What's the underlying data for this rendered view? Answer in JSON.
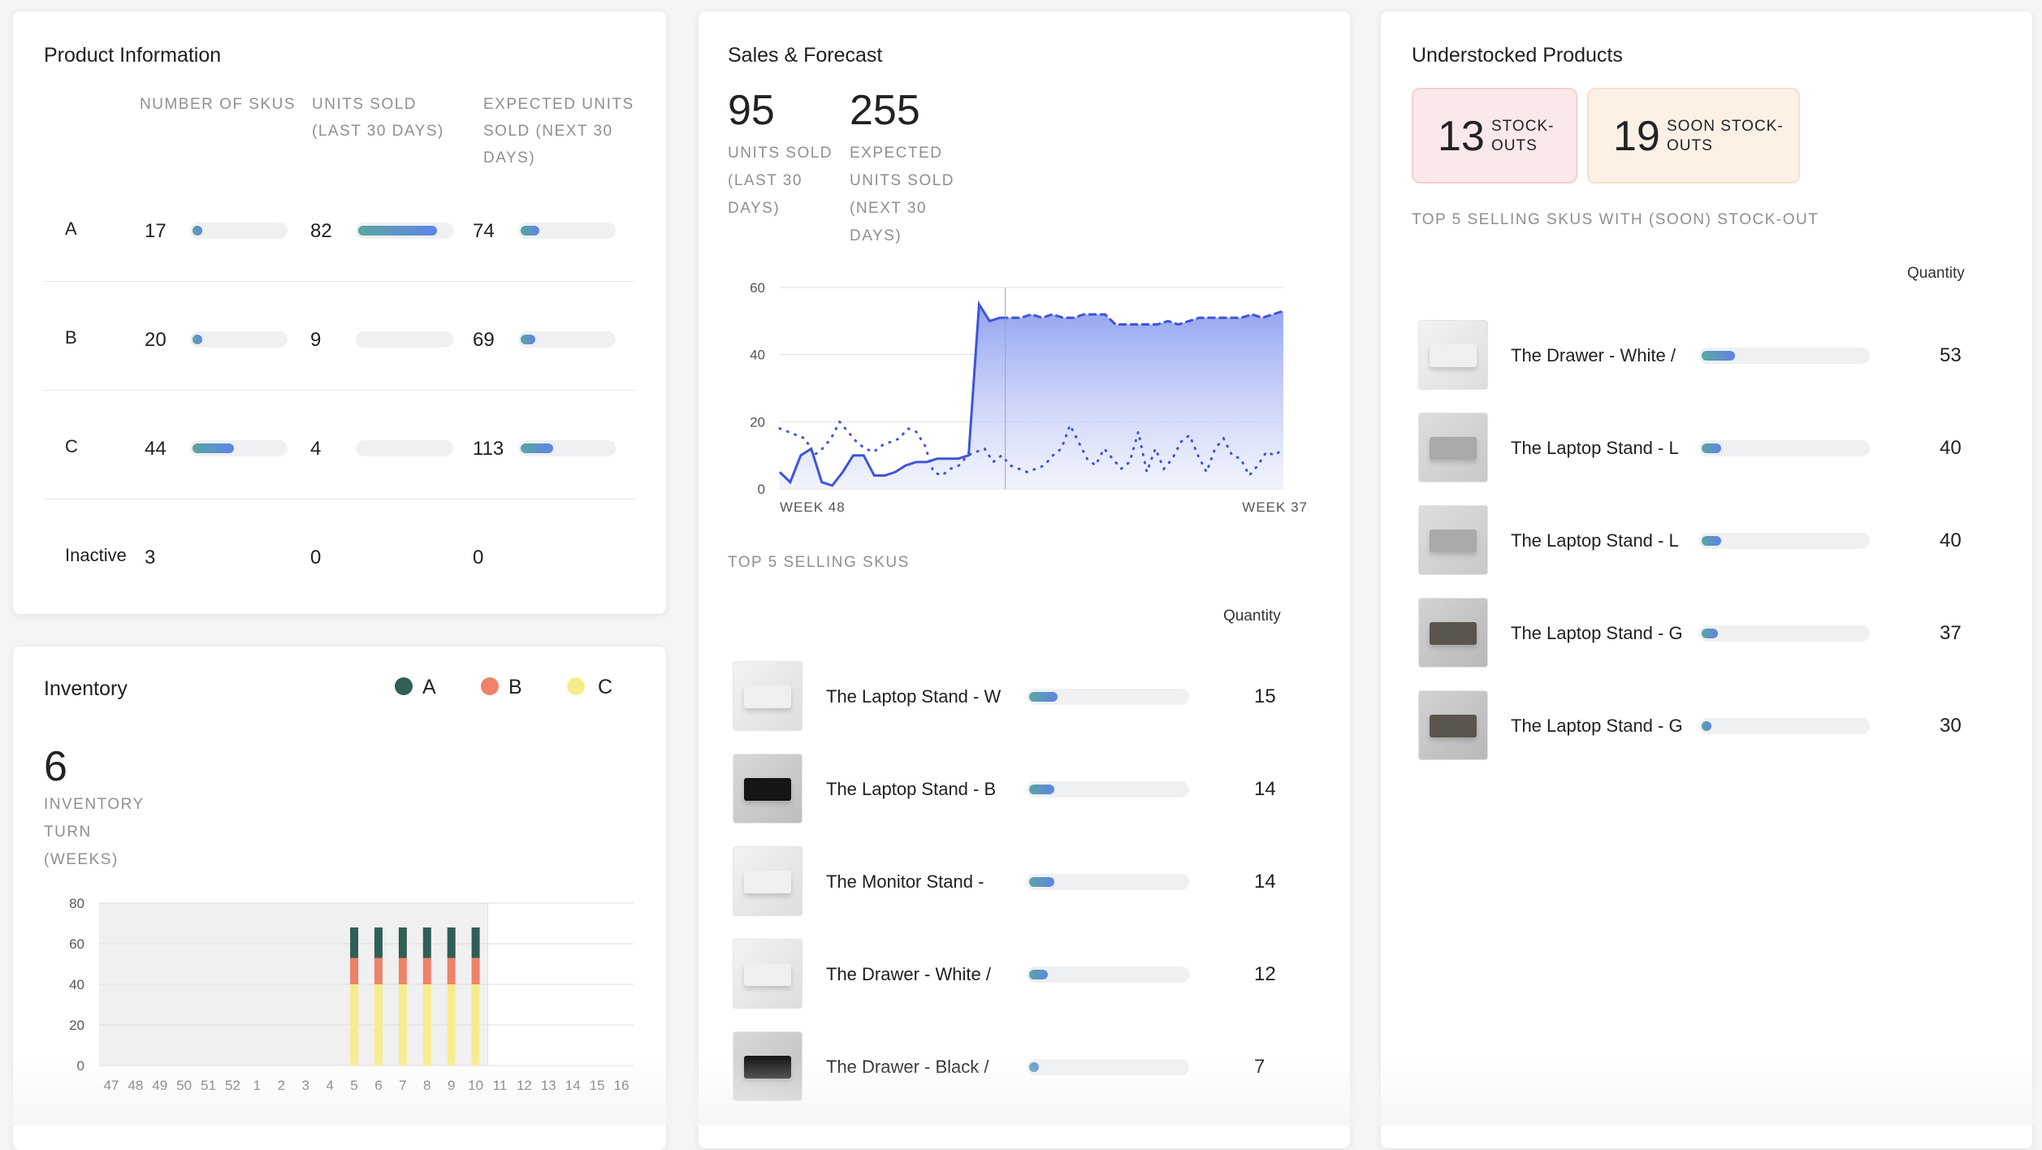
{
  "product_info": {
    "title": "Product Information",
    "headers": [
      "NUMBER OF SKUS",
      "UNITS SOLD (LAST 30 DAYS)",
      "EXPECTED UNITS SOLD (NEXT 30 DAYS)"
    ],
    "rows": [
      {
        "label": "A",
        "skus": "17",
        "skus_pct": 5,
        "sold": "82",
        "sold_pct": 85,
        "expected": "74",
        "expected_pct": 20
      },
      {
        "label": "B",
        "skus": "20",
        "skus_pct": 5,
        "sold": "9",
        "sold_pct": 0,
        "expected": "69",
        "expected_pct": 16
      },
      {
        "label": "C",
        "skus": "44",
        "skus_pct": 45,
        "sold": "4",
        "sold_pct": 0,
        "expected": "113",
        "expected_pct": 35
      },
      {
        "label": "Inactive",
        "skus": "3",
        "sold": "0",
        "expected": "0"
      }
    ]
  },
  "inventory": {
    "title": "Inventory",
    "legend": [
      {
        "label": "A",
        "color": "#2f5f55"
      },
      {
        "label": "B",
        "color": "#ee8268"
      },
      {
        "label": "C",
        "color": "#f7ec8c"
      }
    ],
    "turn_value": "6",
    "turn_label": "INVENTORY TURN (WEEKS)",
    "chart": {
      "type": "bar",
      "stacked": true,
      "ylim": [
        0,
        80
      ],
      "yticks": [
        "0",
        "20",
        "40",
        "60",
        "80"
      ],
      "categories": [
        "47",
        "48",
        "49",
        "50",
        "51",
        "52",
        "1",
        "2",
        "3",
        "4",
        "5",
        "6",
        "7",
        "8",
        "9",
        "10",
        "11",
        "12",
        "13",
        "14",
        "15",
        "16"
      ],
      "series": [
        {
          "name": "C",
          "values": [
            0,
            0,
            0,
            0,
            0,
            0,
            0,
            0,
            0,
            0,
            40,
            40,
            40,
            40,
            40,
            40,
            0,
            0,
            0,
            0,
            0,
            0
          ]
        },
        {
          "name": "B",
          "values": [
            0,
            0,
            0,
            0,
            0,
            0,
            0,
            0,
            0,
            0,
            13,
            13,
            13,
            13,
            13,
            13,
            0,
            0,
            0,
            0,
            0,
            0
          ]
        },
        {
          "name": "A",
          "values": [
            0,
            0,
            0,
            0,
            0,
            0,
            0,
            0,
            0,
            0,
            15,
            15,
            15,
            15,
            15,
            15,
            0,
            0,
            0,
            0,
            0,
            0
          ]
        }
      ],
      "shaded_range": [
        "47",
        "11"
      ]
    }
  },
  "sales": {
    "title": "Sales & Forecast",
    "kpi1_value": "95",
    "kpi1_label": "UNITS SOLD (LAST 30 DAYS)",
    "kpi2_value": "255",
    "kpi2_label": "EXPECTED UNITS SOLD (NEXT 30 DAYS)",
    "chart": {
      "type": "line",
      "ylim": [
        0,
        60
      ],
      "yticks": [
        "0",
        "20",
        "40",
        "60"
      ],
      "x_start_label": "WEEK 48",
      "x_end_label": "WEEK 37",
      "series": [
        {
          "values": [
            5,
            2,
            10,
            12,
            2,
            1,
            5,
            10,
            10,
            4,
            4,
            5,
            7,
            8,
            8,
            9,
            9,
            9,
            10,
            55,
            50,
            51,
            51,
            51,
            52,
            51,
            52,
            51,
            51,
            52,
            52,
            52,
            49,
            49,
            49,
            49,
            49,
            50,
            49,
            50,
            51,
            51,
            51,
            51,
            51,
            52,
            51,
            52,
            53
          ]
        },
        {
          "values": [
            18,
            17,
            16,
            15,
            10,
            12,
            15,
            20,
            17,
            14,
            12,
            11,
            13,
            14,
            15,
            18,
            17,
            13,
            5,
            4,
            6,
            7,
            10,
            11,
            12,
            8,
            10,
            7,
            6,
            5,
            6,
            7,
            10,
            12,
            19,
            14,
            9,
            7,
            12,
            9,
            6,
            8,
            17,
            5,
            12,
            6,
            9,
            14,
            16,
            10,
            5,
            12,
            15,
            10,
            9,
            4,
            7,
            11,
            10,
            12
          ]
        }
      ],
      "cutoff_index": 21
    },
    "top_label": "TOP 5 SELLING SKUS",
    "qty_header": "Quantity",
    "items": [
      {
        "name": "The Laptop Stand - W",
        "qty": "15",
        "pct": 18,
        "thumb": "white"
      },
      {
        "name": "The Laptop Stand - B",
        "qty": "14",
        "pct": 16,
        "thumb": "black"
      },
      {
        "name": "The Monitor Stand -",
        "qty": "14",
        "pct": 16,
        "thumb": "white"
      },
      {
        "name": "The Drawer - White /",
        "qty": "12",
        "pct": 12,
        "thumb": "white"
      },
      {
        "name": "The Drawer - Black /",
        "qty": "7",
        "pct": 4,
        "thumb": "black"
      }
    ]
  },
  "understocked": {
    "title": "Understocked Products",
    "stockouts_value": "13",
    "stockouts_label": "STOCK-OUTS",
    "soon_value": "19",
    "soon_label": "SOON STOCK-OUTS",
    "top_label": "TOP 5 SELLING SKUS WITH (SOON) STOCK-OUT",
    "qty_header": "Quantity",
    "items": [
      {
        "name": "The Drawer - White /",
        "qty": "53",
        "pct": 20,
        "thumb": "white"
      },
      {
        "name": "The Laptop Stand - L",
        "qty": "40",
        "pct": 12,
        "thumb": "grey"
      },
      {
        "name": "The Laptop Stand - L",
        "qty": "40",
        "pct": 12,
        "thumb": "grey"
      },
      {
        "name": "The Laptop Stand - G",
        "qty": "37",
        "pct": 10,
        "thumb": "dark"
      },
      {
        "name": "The Laptop Stand - G",
        "qty": "30",
        "pct": 6,
        "thumb": "dark"
      }
    ]
  }
}
